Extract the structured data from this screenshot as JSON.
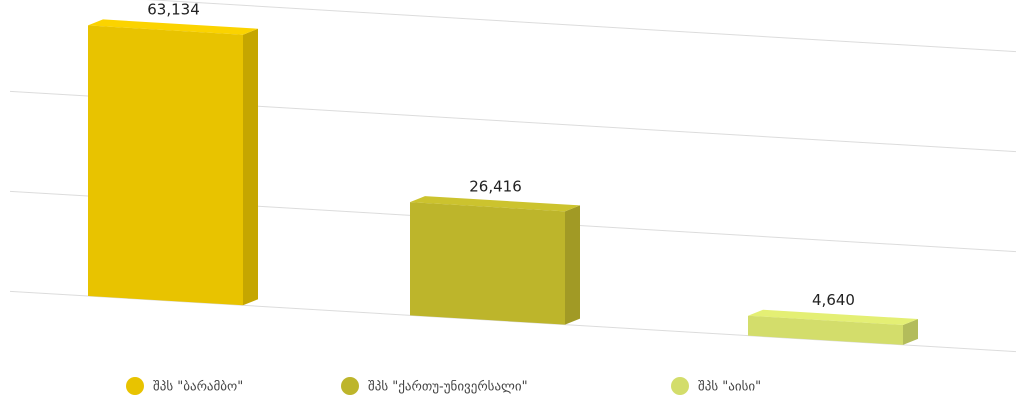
{
  "chart_data": {
    "type": "bar3d",
    "categories": [
      "შპს \"ბარამბო\"",
      "შპს \"ქართუ-უნივერსალი\"",
      "შპს \"აისი\""
    ],
    "values": [
      63134,
      26416,
      4640
    ],
    "value_labels": [
      "63,134",
      "26,416",
      "4,640"
    ],
    "colors": [
      "#e8c300",
      "#bdb52b",
      "#d3dd6b"
    ],
    "ylim": [
      0,
      70000
    ],
    "grid": true,
    "legend": "bottom"
  }
}
